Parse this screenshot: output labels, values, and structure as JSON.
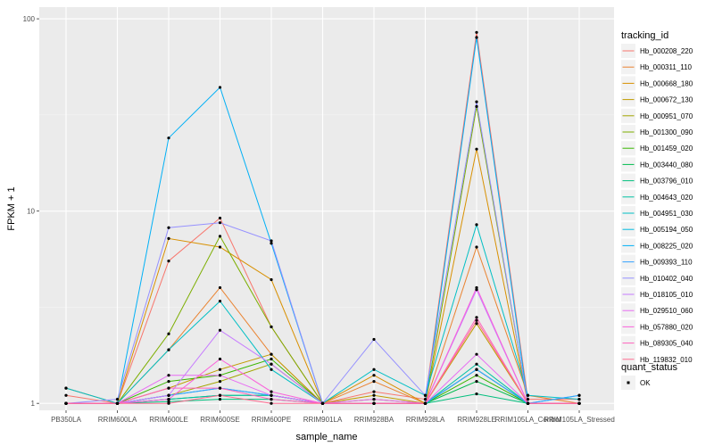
{
  "chart_data": {
    "type": "line",
    "title": "",
    "xlabel": "sample_name",
    "ylabel": "FPKM + 1",
    "y_scale": "log10",
    "ylim": [
      0.92,
      115
    ],
    "y_ticks": [
      1,
      10,
      100
    ],
    "y_tick_labels": [
      "1",
      "10",
      "100"
    ],
    "grid": true,
    "legend_position": "right",
    "categories": [
      "PB350LA",
      "RRIM600LA",
      "RRIM600LE",
      "RRIM600SE",
      "RRIM600PE",
      "RRIM901LA",
      "RRIM928BA",
      "RRIM928LA",
      "RRIM928LE",
      "RRIM105LA_Control",
      "RRIM105LA_Stressed"
    ],
    "legend_title": "tracking_id",
    "series": [
      {
        "name": "Hb_000208_220",
        "color": "#F8766D",
        "values": [
          1.1,
          1.0,
          5.5,
          9.2,
          2.5,
          1.0,
          1.15,
          1.05,
          85,
          1.05,
          1.05
        ]
      },
      {
        "name": "Hb_000311_110",
        "color": "#EA8331",
        "values": [
          1.2,
          1.0,
          1.9,
          4.0,
          1.8,
          1.0,
          1.3,
          1.0,
          6.5,
          1.1,
          1.0
        ]
      },
      {
        "name": "Hb_000668_180",
        "color": "#D89000",
        "values": [
          1.0,
          1.0,
          7.2,
          6.5,
          4.4,
          1.0,
          1.4,
          1.0,
          21,
          1.0,
          1.0
        ]
      },
      {
        "name": "Hb_000672_130",
        "color": "#C09B00",
        "values": [
          1.0,
          1.0,
          1.2,
          1.5,
          1.8,
          1.0,
          1.1,
          1.0,
          2.6,
          1.0,
          1.0
        ]
      },
      {
        "name": "Hb_000951_070",
        "color": "#A3A500",
        "values": [
          1.0,
          1.0,
          1.1,
          1.3,
          1.6,
          1.0,
          1.0,
          1.0,
          1.5,
          1.0,
          1.0
        ]
      },
      {
        "name": "Hb_001300_090",
        "color": "#7CAE00",
        "values": [
          1.0,
          1.0,
          2.3,
          7.4,
          2.5,
          1.0,
          1.05,
          1.0,
          35,
          1.0,
          1.0
        ]
      },
      {
        "name": "Hb_001459_020",
        "color": "#39B600",
        "values": [
          1.0,
          1.0,
          1.3,
          1.4,
          1.7,
          1.0,
          1.0,
          1.0,
          1.4,
          1.0,
          1.0
        ]
      },
      {
        "name": "Hb_003440_080",
        "color": "#00BB4E",
        "values": [
          1.0,
          1.0,
          1.05,
          1.1,
          1.1,
          1.0,
          1.0,
          1.0,
          1.3,
          1.0,
          1.0
        ]
      },
      {
        "name": "Hb_003796_010",
        "color": "#00BF7D",
        "values": [
          1.0,
          1.0,
          1.02,
          1.05,
          1.05,
          1.0,
          1.0,
          1.0,
          1.12,
          1.0,
          1.0
        ]
      },
      {
        "name": "Hb_004643_020",
        "color": "#00C1A3",
        "values": [
          1.0,
          1.0,
          1.05,
          1.1,
          1.1,
          1.0,
          1.0,
          1.0,
          1.6,
          1.0,
          1.0
        ]
      },
      {
        "name": "Hb_004951_030",
        "color": "#00BFC4",
        "values": [
          1.2,
          1.0,
          1.9,
          3.4,
          1.5,
          1.0,
          1.5,
          1.1,
          8.5,
          1.1,
          1.05
        ]
      },
      {
        "name": "Hb_005194_050",
        "color": "#00BAE0",
        "values": [
          1.0,
          1.0,
          1.1,
          1.2,
          1.1,
          1.0,
          1.0,
          1.0,
          1.5,
          1.0,
          1.0
        ]
      },
      {
        "name": "Hb_008225_020",
        "color": "#00B0F6",
        "values": [
          1.0,
          1.0,
          24,
          44,
          6.8,
          1.0,
          1.0,
          1.0,
          80,
          1.0,
          1.1
        ]
      },
      {
        "name": "Hb_009393_110",
        "color": "#35A2FF",
        "values": [
          1.0,
          1.0,
          1.1,
          1.2,
          1.1,
          1.0,
          1.0,
          1.0,
          1.5,
          1.0,
          1.1
        ]
      },
      {
        "name": "Hb_010402_040",
        "color": "#9590FF",
        "values": [
          1.0,
          1.05,
          8.2,
          8.7,
          7.0,
          1.0,
          2.15,
          1.1,
          37,
          1.0,
          1.0
        ]
      },
      {
        "name": "Hb_018105_010",
        "color": "#C77CFF",
        "values": [
          1.0,
          1.0,
          1.1,
          2.4,
          1.6,
          1.0,
          1.0,
          1.0,
          3.9,
          1.0,
          1.0
        ]
      },
      {
        "name": "Hb_029510_060",
        "color": "#E76BF3",
        "values": [
          1.0,
          1.0,
          1.4,
          1.4,
          1.1,
          1.0,
          1.05,
          1.0,
          1.8,
          1.0,
          1.0
        ]
      },
      {
        "name": "Hb_057880_020",
        "color": "#FA62DB",
        "values": [
          1.0,
          1.0,
          1.05,
          1.7,
          1.15,
          1.0,
          1.0,
          1.0,
          4.0,
          1.0,
          1.0
        ]
      },
      {
        "name": "Hb_089305_040",
        "color": "#FF62BC",
        "values": [
          1.0,
          1.0,
          1.2,
          1.2,
          1.05,
          1.0,
          1.0,
          1.0,
          2.8,
          1.0,
          1.0
        ]
      },
      {
        "name": "Hb_119832_010",
        "color": "#FF6C91",
        "values": [
          1.0,
          1.0,
          1.0,
          1.1,
          1.0,
          1.0,
          1.0,
          1.0,
          2.7,
          1.0,
          1.0
        ]
      }
    ],
    "point_legend": {
      "title": "quant_status",
      "items": [
        {
          "label": "OK",
          "color": "#000000"
        }
      ]
    }
  }
}
